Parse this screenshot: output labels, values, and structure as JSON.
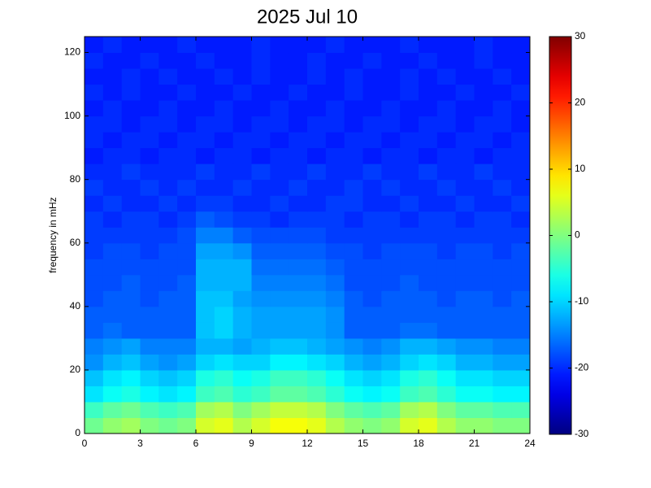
{
  "chart_data": {
    "type": "heatmap",
    "title": "2025 Jul 10",
    "y_label": "frequency in mHz",
    "colormap": "jet",
    "x": [
      0,
      1,
      2,
      3,
      4,
      5,
      6,
      7,
      8,
      9,
      10,
      11,
      12,
      13,
      14,
      15,
      16,
      17,
      18,
      19,
      20,
      21,
      22,
      23,
      24
    ],
    "y": [
      0,
      5,
      10,
      15,
      20,
      25,
      30,
      35,
      40,
      45,
      50,
      55,
      60,
      65,
      70,
      75,
      80,
      85,
      90,
      95,
      100,
      105,
      110,
      115,
      120,
      125
    ],
    "z": [
      [
        -1,
        1,
        2,
        0,
        -1,
        0,
        5,
        6,
        3,
        5,
        7,
        7,
        6,
        3,
        1,
        0,
        1,
        5,
        6,
        3,
        1,
        1,
        0,
        0
      ],
      [
        -4,
        -2,
        -1,
        -3,
        -4,
        -3,
        2,
        3,
        0,
        2,
        4,
        4,
        3,
        0,
        -2,
        -3,
        -2,
        2,
        3,
        0,
        -2,
        -2,
        -3,
        -3
      ],
      [
        -9,
        -7,
        -6,
        -8,
        -9,
        -8,
        -4,
        -3,
        -5,
        -4,
        -2,
        -2,
        -3,
        -5,
        -7,
        -8,
        -7,
        -4,
        -3,
        -5,
        -7,
        -7,
        -8,
        -8
      ],
      [
        -11,
        -9,
        -8,
        -10,
        -11,
        -10,
        -6,
        -5,
        -7,
        -6,
        -4,
        -4,
        -5,
        -7,
        -9,
        -10,
        -9,
        -6,
        -5,
        -7,
        -9,
        -9,
        -10,
        -10
      ],
      [
        -14,
        -12,
        -11,
        -13,
        -14,
        -13,
        -10,
        -9,
        -10,
        -10,
        -8,
        -8,
        -9,
        -10,
        -12,
        -13,
        -12,
        -10,
        -9,
        -10,
        -12,
        -12,
        -13,
        -13
      ],
      [
        -15,
        -14,
        -13,
        -15,
        -15,
        -15,
        -12,
        -12,
        -13,
        -12,
        -11,
        -11,
        -12,
        -13,
        -14,
        -15,
        -14,
        -12,
        -12,
        -13,
        -14,
        -14,
        -15,
        -15
      ],
      [
        -17,
        -16,
        -17,
        -17,
        -17,
        -17,
        -11,
        -10,
        -12,
        -13,
        -13,
        -13,
        -13,
        -14,
        -17,
        -17,
        -17,
        -16,
        -16,
        -17,
        -17,
        -17,
        -17,
        -17
      ],
      [
        -17,
        -17,
        -17,
        -17,
        -17,
        -17,
        -11,
        -10,
        -12,
        -13,
        -13,
        -13,
        -13,
        -14,
        -17,
        -17,
        -17,
        -17,
        -17,
        -17,
        -17,
        -17,
        -17,
        -17
      ],
      [
        -18,
        -17,
        -17,
        -18,
        -17,
        -17,
        -11,
        -11,
        -13,
        -14,
        -14,
        -14,
        -14,
        -15,
        -17,
        -18,
        -17,
        -17,
        -17,
        -18,
        -17,
        -17,
        -18,
        -17
      ],
      [
        -18,
        -18,
        -17,
        -18,
        -18,
        -17,
        -12,
        -12,
        -12,
        -15,
        -15,
        -15,
        -15,
        -16,
        -18,
        -18,
        -18,
        -17,
        -18,
        -18,
        -18,
        -18,
        -18,
        -18
      ],
      [
        -18,
        -18,
        -18,
        -18,
        -18,
        -18,
        -12,
        -12,
        -12,
        -16,
        -16,
        -16,
        -16,
        -17,
        -18,
        -18,
        -18,
        -18,
        -18,
        -18,
        -18,
        -18,
        -18,
        -18
      ],
      [
        -19,
        -18,
        -18,
        -19,
        -18,
        -18,
        -13,
        -13,
        -14,
        -17,
        -17,
        -17,
        -17,
        -18,
        -18,
        -19,
        -18,
        -18,
        -18,
        -19,
        -18,
        -18,
        -19,
        -18
      ],
      [
        -19,
        -19,
        -19,
        -19,
        -19,
        -18,
        -15,
        -15,
        -17,
        -18,
        -18,
        -18,
        -18,
        -19,
        -19,
        -19,
        -19,
        -19,
        -19,
        -19,
        -19,
        -19,
        -19,
        -19
      ],
      [
        -19,
        -20,
        -19,
        -19,
        -20,
        -19,
        -17,
        -18,
        -19,
        -19,
        -20,
        -19,
        -19,
        -19,
        -20,
        -19,
        -19,
        -20,
        -19,
        -19,
        -20,
        -19,
        -19,
        -20
      ],
      [
        -20,
        -19,
        -20,
        -20,
        -19,
        -20,
        -19,
        -19,
        -20,
        -20,
        -19,
        -20,
        -20,
        -19,
        -19,
        -20,
        -20,
        -19,
        -20,
        -20,
        -19,
        -20,
        -20,
        -19
      ],
      [
        -19,
        -20,
        -20,
        -19,
        -20,
        -19,
        -20,
        -20,
        -19,
        -20,
        -20,
        -19,
        -20,
        -20,
        -19,
        -20,
        -19,
        -20,
        -20,
        -19,
        -20,
        -20,
        -19,
        -20
      ],
      [
        -20,
        -20,
        -19,
        -20,
        -20,
        -20,
        -19,
        -20,
        -20,
        -19,
        -20,
        -20,
        -19,
        -20,
        -20,
        -19,
        -20,
        -20,
        -19,
        -20,
        -20,
        -19,
        -20,
        -20
      ],
      [
        -21,
        -20,
        -20,
        -21,
        -20,
        -20,
        -21,
        -20,
        -20,
        -21,
        -20,
        -20,
        -21,
        -20,
        -20,
        -21,
        -20,
        -20,
        -21,
        -20,
        -20,
        -21,
        -20,
        -20
      ],
      [
        -20,
        -21,
        -20,
        -20,
        -21,
        -20,
        -20,
        -21,
        -20,
        -20,
        -21,
        -20,
        -20,
        -21,
        -20,
        -20,
        -21,
        -20,
        -20,
        -21,
        -20,
        -20,
        -21,
        -20
      ],
      [
        -20,
        -20,
        -21,
        -20,
        -20,
        -21,
        -20,
        -20,
        -21,
        -20,
        -20,
        -21,
        -20,
        -20,
        -21,
        -20,
        -20,
        -21,
        -20,
        -20,
        -21,
        -20,
        -20,
        -21
      ],
      [
        -21,
        -20,
        -21,
        -21,
        -20,
        -21,
        -21,
        -20,
        -21,
        -21,
        -20,
        -21,
        -21,
        -20,
        -21,
        -21,
        -20,
        -21,
        -21,
        -20,
        -21,
        -21,
        -20,
        -21
      ],
      [
        -20,
        -21,
        -20,
        -21,
        -21,
        -20,
        -21,
        -21,
        -20,
        -21,
        -21,
        -20,
        -21,
        -21,
        -20,
        -21,
        -21,
        -20,
        -21,
        -21,
        -20,
        -21,
        -21,
        -20
      ],
      [
        -21,
        -21,
        -20,
        -21,
        -20,
        -21,
        -21,
        -20,
        -21,
        -20,
        -21,
        -21,
        -20,
        -21,
        -20,
        -21,
        -21,
        -20,
        -21,
        -20,
        -21,
        -21,
        -20,
        -21
      ],
      [
        -20,
        -21,
        -21,
        -20,
        -21,
        -21,
        -20,
        -21,
        -21,
        -20,
        -21,
        -21,
        -20,
        -21,
        -21,
        -20,
        -21,
        -21,
        -20,
        -21,
        -21,
        -20,
        -21,
        -21
      ],
      [
        -21,
        -20,
        -21,
        -21,
        -21,
        -20,
        -21,
        -21,
        -21,
        -20,
        -21,
        -21,
        -21,
        -20,
        -21,
        -21,
        -21,
        -20,
        -21,
        -21,
        -21,
        -20,
        -21,
        -21
      ]
    ],
    "xlim": [
      0,
      24
    ],
    "xticks": [
      0,
      3,
      6,
      9,
      12,
      15,
      18,
      21,
      24
    ],
    "ylim": [
      0,
      125
    ],
    "yticks": [
      0,
      20,
      40,
      60,
      80,
      100,
      120
    ],
    "clim": [
      -30,
      30
    ],
    "cticks": [
      -30,
      -20,
      -10,
      0,
      10,
      20,
      30
    ]
  }
}
